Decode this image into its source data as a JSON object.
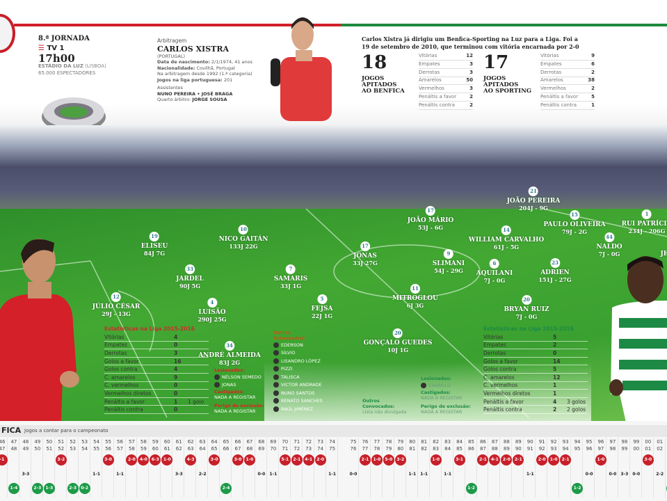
{
  "colors": {
    "benfica": "#c8202a",
    "sporting": "#1c9a48"
  },
  "match": {
    "round": "8.ª JORNADA",
    "tv": "TV 1",
    "time": "17h00",
    "stadium": "ESTÁDIO DA LUZ",
    "capacity_code": "(LISBOA)",
    "spectators": "65.000 ESPECTADORES"
  },
  "referee": {
    "section": "Arbitragem",
    "name": "CARLOS XISTRA",
    "country": "(PORTUGAL)",
    "birth_label": "Data de nascimento:",
    "birth": "2/1/1974, 41 anos",
    "nat_label": "Nacionalidade:",
    "nat": "Covilhã, Portugal",
    "career": "Na arbitragem desde 1992 (1.ª categoria)",
    "games_label": "Jogos na liga portuguesa:",
    "games": "201",
    "assist_label": "Assistentes",
    "assistants": "NUNO PEREIRA • JOSÉ BRAGA",
    "fourth_label": "Quarto árbitro:",
    "fourth": "JORGE SOUSA"
  },
  "intro": "Carlos Xistra já dirigiu um Benfica-Sporting na Luz para a Liga. Foi a 19 de setembro de 2010, que terminou com vitória encarnada por 2-0",
  "ref_stats": [
    {
      "count": "18",
      "label1": "JOGOS",
      "label2": "APITADOS",
      "label3": "AO BENFICA",
      "rows": [
        [
          "Vitórias",
          "12"
        ],
        [
          "Empates",
          "3"
        ],
        [
          "Derrotas",
          "3"
        ],
        [
          "Amarelos",
          "50"
        ],
        [
          "Vermelhos",
          "3"
        ],
        [
          "Penáltis a favor",
          "2"
        ],
        [
          "Penáltis contra",
          "2"
        ]
      ]
    },
    {
      "count": "17",
      "label1": "JOGOS",
      "label2": "APITADOS",
      "label3": "AO SPORTING",
      "rows": [
        [
          "Vitórias",
          "9"
        ],
        [
          "Empates",
          "6"
        ],
        [
          "Derrotas",
          "2"
        ],
        [
          "Amarelos",
          "38"
        ],
        [
          "Vermelhos",
          "2"
        ],
        [
          "Penáltis a favor",
          "5"
        ],
        [
          "Penáltis contra",
          "1"
        ]
      ]
    }
  ],
  "players": [
    {
      "n": "12",
      "name": "JÚLIO CÉSAR",
      "stat": "29J - 13G"
    },
    {
      "n": "19",
      "name": "ELISEU",
      "stat": "84J 7G"
    },
    {
      "n": "10",
      "name": "NICO GAITÁN",
      "stat": "133J 22G"
    },
    {
      "n": "33",
      "name": "JARDEL",
      "stat": "90J 5G"
    },
    {
      "n": "7",
      "name": "SAMARIS",
      "stat": "33J 1G"
    },
    {
      "n": "4",
      "name": "LUISÃO",
      "stat": "290J 25G"
    },
    {
      "n": "5",
      "name": "FEJSA",
      "stat": "22J 1G"
    },
    {
      "n": "34",
      "name": "ANDRÉ ALMEIDA",
      "stat": "83J 2G"
    },
    {
      "n": "17",
      "name": "JONAS",
      "stat": "33J 27G"
    },
    {
      "n": "11",
      "name": "MITROGLOU",
      "stat": "6J 3G"
    },
    {
      "n": "20",
      "name": "GONÇALO GUEDES",
      "stat": "10J 1G"
    },
    {
      "n": "17",
      "name": "JOÃO MÁRIO",
      "stat": "53J - 6G"
    },
    {
      "n": "9",
      "name": "SLIMANI",
      "stat": "54J - 29G"
    },
    {
      "n": "6",
      "name": "AQUILANI",
      "stat": "7J - 0G"
    },
    {
      "n": "14",
      "name": "WILLIAM CARVALHO",
      "stat": "61J - 5G"
    },
    {
      "n": "21",
      "name": "JOÃO PEREIRA",
      "stat": "204J - 9G"
    },
    {
      "n": "23",
      "name": "ADRIEN",
      "stat": "151J - 27G"
    },
    {
      "n": "20",
      "name": "BRYAN RUIZ",
      "stat": "7J - 0G"
    },
    {
      "n": "15",
      "name": "PAULO OLIVEIRA",
      "stat": "79J - 2G"
    },
    {
      "n": "44",
      "name": "NALDO",
      "stat": "7J - 0G"
    },
    {
      "n": "1",
      "name": "RUI PATRÍCIO",
      "stat": "234J - 206G"
    },
    {
      "n": "",
      "name": "JE",
      "stat": ""
    }
  ],
  "benfica": {
    "stats_title": "Estatísticas na Liga 2015-2016",
    "stats": [
      [
        "Vitórias",
        "4",
        ""
      ],
      [
        "Empates",
        "0",
        ""
      ],
      [
        "Derrotas",
        "3",
        ""
      ],
      [
        "Golos a favor",
        "16",
        ""
      ],
      [
        "Golos contra",
        "4",
        ""
      ],
      [
        "C. amarelos",
        "9",
        ""
      ],
      [
        "C. vermelhos",
        "0",
        ""
      ],
      [
        "Vermelhos diretos",
        "0",
        ""
      ],
      [
        "Penáltis a favor",
        "1",
        "1 golo"
      ],
      [
        "Penáltis contra",
        "0",
        ""
      ]
    ],
    "injured_label": "Lesionados:",
    "injured": [
      "NÉLSON SEMEDO",
      "JONAS"
    ],
    "suspended_label": "Castigados:",
    "suspended": "NADA A REGISTAR",
    "risk_label": "Perigo de exclusão:",
    "risk": "NADA A REGISTAR",
    "others_label1": "Outros",
    "others_label2": "Convocados:",
    "others": [
      "EDERSON",
      "SÍLVIO",
      "LISANDRO LÓPEZ",
      "PIZZI",
      "TALISCA",
      "VICTOR ANDRADE",
      "NUNO SANTOS",
      "RENATO SANCHES",
      "RAÚL JIMÉNEZ"
    ]
  },
  "sporting": {
    "stats_title": "Estatísticas na Liga 2015-2016",
    "stats": [
      [
        "Vitórias",
        "5",
        ""
      ],
      [
        "Empates",
        "2",
        ""
      ],
      [
        "Derrotas",
        "0",
        ""
      ],
      [
        "Golos a favor",
        "14",
        ""
      ],
      [
        "Golos contra",
        "5",
        ""
      ],
      [
        "C. amarelos",
        "12",
        ""
      ],
      [
        "C. vermelhos",
        "1",
        ""
      ],
      [
        "Vermelhos diretos",
        "1",
        ""
      ],
      [
        "Penáltis a favor",
        "4",
        "3 golos"
      ],
      [
        "Penáltis contra",
        "2",
        "2 golos"
      ]
    ],
    "injured_label": "Lesionados:",
    "injured": [
      "CARRILLO"
    ],
    "suspended_label": "Castigados:",
    "suspended": "NADA A REGISTAR",
    "risk_label": "Perigo de exclusão:",
    "risk": "NADA A REGISTAR",
    "others_label1": "Outros",
    "others_label2": "Convocados:",
    "others_text": "Lista não divulgada"
  },
  "timeline": {
    "team": "FICA",
    "subtitle": "Jogos a contar para o campeonato",
    "seasons": [
      [
        "46",
        "47",
        "-1",
        "benfica"
      ],
      [
        "47",
        "48",
        "1-4",
        "sporting"
      ],
      [
        "48",
        "49",
        "3-3",
        "draw"
      ],
      [
        "49",
        "50",
        "2-3",
        "sporting"
      ],
      [
        "50",
        "51",
        "1-3",
        "sporting"
      ],
      [
        "51",
        "52",
        "3-2",
        "benfica"
      ],
      [
        "52",
        "53",
        "2-3",
        "sporting"
      ],
      [
        "53",
        "54",
        "0-2",
        "sporting"
      ],
      [
        "54",
        "55",
        "1-1",
        "draw"
      ],
      [
        "55",
        "56",
        "3-0",
        "benfica"
      ],
      [
        "56",
        "57",
        "1-1",
        "draw"
      ],
      [
        "57",
        "58",
        "2-0",
        "benfica"
      ],
      [
        "58",
        "59",
        "4-0",
        "benfica"
      ],
      [
        "59",
        "60",
        "6-3",
        "benfica"
      ],
      [
        "60",
        "61",
        "1-0",
        "benfica"
      ],
      [
        "61",
        "62",
        "3-3",
        "draw"
      ],
      [
        "62",
        "63",
        "4-3",
        "benfica"
      ],
      [
        "63",
        "64",
        "2-2",
        "draw"
      ],
      [
        "64",
        "65",
        "3-0",
        "benfica"
      ],
      [
        "65",
        "66",
        "2-4",
        "sporting"
      ],
      [
        "66",
        "67",
        "3-0",
        "benfica"
      ],
      [
        "67",
        "68",
        "1-0",
        "benfica"
      ],
      [
        "68",
        "69",
        "0-0",
        "draw"
      ],
      [
        "69",
        "70",
        "1-1",
        "draw"
      ],
      [
        "70",
        "71",
        "5-1",
        "benfica"
      ],
      [
        "71",
        "72",
        "2-1",
        "benfica"
      ],
      [
        "72",
        "73",
        "4-1",
        "benfica"
      ],
      [
        "73",
        "74",
        "2-0",
        "benfica"
      ],
      [
        "74",
        "75",
        "1-1",
        "draw"
      ],
      [
        "75",
        "76",
        "0-0",
        "draw"
      ],
      [
        "76",
        "77",
        "2-1",
        "benfica"
      ],
      [
        "77",
        "78",
        "1-0",
        "benfica"
      ],
      [
        "78",
        "79",
        "5-0",
        "benfica"
      ],
      [
        "79",
        "80",
        "3-2",
        "benfica"
      ],
      [
        "80",
        "81",
        "1-1",
        "draw"
      ],
      [
        "81",
        "82",
        "1-1",
        "draw"
      ],
      [
        "82",
        "83",
        "1-0",
        "benfica"
      ],
      [
        "83",
        "84",
        "1-1",
        "draw"
      ],
      [
        "84",
        "85",
        "3-1",
        "benfica"
      ],
      [
        "85",
        "86",
        "1-2",
        "sporting"
      ],
      [
        "86",
        "87",
        "2-1",
        "benfica"
      ],
      [
        "87",
        "88",
        "4-1",
        "benfica"
      ],
      [
        "88",
        "89",
        "2-0",
        "benfica"
      ],
      [
        "89",
        "90",
        "2-1",
        "benfica"
      ],
      [
        "90",
        "91",
        "1-1",
        "draw"
      ],
      [
        "91",
        "92",
        "2-0",
        "benfica"
      ],
      [
        "92",
        "93",
        "1-0",
        "benfica"
      ],
      [
        "93",
        "94",
        "2-1",
        "benfica"
      ],
      [
        "94",
        "95",
        "1-2",
        "sporting"
      ],
      [
        "95",
        "96",
        "0-0",
        "draw"
      ],
      [
        "96",
        "97",
        "1-0",
        "benfica"
      ],
      [
        "97",
        "98",
        "0-0",
        "draw"
      ],
      [
        "98",
        "99",
        "3-3",
        "draw"
      ],
      [
        "99",
        "00",
        "0-0",
        "draw"
      ],
      [
        "00",
        "01",
        "3-0",
        "benfica"
      ],
      [
        "01",
        "02",
        "2-2",
        "draw"
      ],
      [
        "02",
        "03",
        "1-",
        "sporting"
      ]
    ]
  }
}
